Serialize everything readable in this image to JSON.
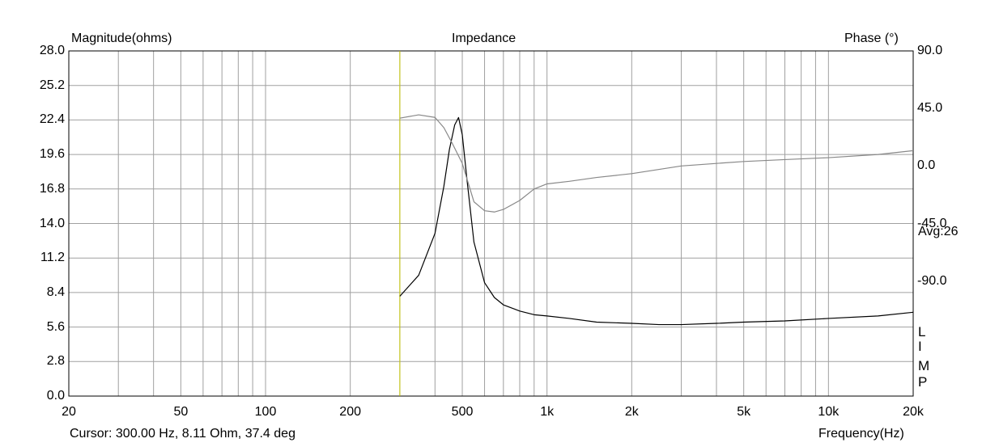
{
  "chart_data": {
    "type": "line",
    "title": "Impedance",
    "ylabel": "Magnitude(ohms)",
    "y2label": "Phase (°)",
    "xlabel": "Frequency(Hz)",
    "x_scale": "log",
    "xlim": [
      20,
      20000
    ],
    "ylim": [
      0,
      28
    ],
    "y2lim": [
      -180,
      90
    ],
    "x_ticks": [
      20,
      50,
      100,
      200,
      500,
      1000,
      2000,
      5000,
      10000,
      20000
    ],
    "x_tick_labels": [
      "20",
      "50",
      "100",
      "200",
      "500",
      "1k",
      "2k",
      "5k",
      "10k",
      "20k"
    ],
    "y_tick_labels": [
      "0.0",
      "2.8",
      "5.6",
      "8.4",
      "11.2",
      "14.0",
      "16.8",
      "19.6",
      "22.4",
      "25.2",
      "28.0"
    ],
    "y2_ticks": [
      90,
      45,
      0,
      -45,
      -90
    ],
    "y2_tick_labels": [
      "90.0",
      "45.0",
      "0.0",
      "-45.0",
      "-90.0"
    ],
    "grid": true,
    "cursor": {
      "x": 300,
      "color": "#c8c800"
    },
    "cursor_readout": "Cursor: 300.00 Hz, 8.11 Ohm, 37.4 deg",
    "avg_label": "Avg:26",
    "imp_letters": [
      "L",
      "I",
      "M",
      "P"
    ],
    "series": [
      {
        "axis": "left",
        "color": "#000000",
        "x": [
          300,
          350,
          400,
          430,
          450,
          470,
          485,
          500,
          520,
          550,
          600,
          650,
          700,
          800,
          900,
          1000,
          1200,
          1500,
          2000,
          2500,
          3000,
          4000,
          5000,
          7000,
          10000,
          15000,
          20000
        ],
        "y": [
          8.1,
          9.8,
          13.2,
          17.0,
          20.0,
          22.0,
          22.6,
          21.2,
          17.5,
          12.5,
          9.2,
          8.0,
          7.4,
          6.9,
          6.6,
          6.5,
          6.3,
          6.0,
          5.9,
          5.8,
          5.8,
          5.9,
          6.0,
          6.1,
          6.3,
          6.5,
          6.8
        ]
      },
      {
        "axis": "right",
        "color": "#888888",
        "x": [
          300,
          350,
          400,
          430,
          460,
          500,
          550,
          600,
          650,
          700,
          800,
          900,
          1000,
          1200,
          1500,
          2000,
          3000,
          4000,
          5000,
          7000,
          10000,
          15000,
          20000
        ],
        "y": [
          37.4,
          40.0,
          38.0,
          30.0,
          18.0,
          2.0,
          -28.0,
          -35.0,
          -36.0,
          -34.0,
          -27.0,
          -18.0,
          -14.0,
          -12.0,
          -9.0,
          -6.0,
          0.0,
          2.0,
          3.5,
          5.0,
          6.5,
          9.0,
          12.0
        ]
      }
    ]
  }
}
